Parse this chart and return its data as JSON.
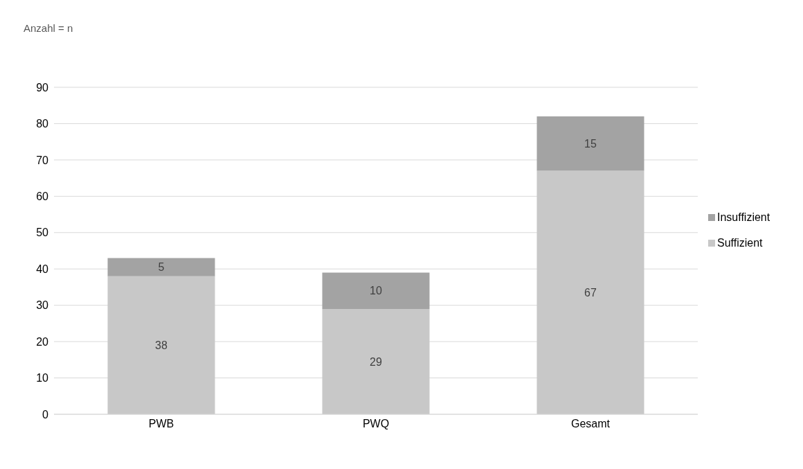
{
  "chart_data": {
    "type": "bar",
    "ylabel": "Anzahl = n",
    "categories": [
      "PWB",
      "PWQ",
      "Gesamt"
    ],
    "series": [
      {
        "name": "Suffizient",
        "color": "#c8c8c8",
        "values": [
          38,
          29,
          67
        ]
      },
      {
        "name": "Insuffizient",
        "color": "#a3a3a3",
        "values": [
          5,
          10,
          15
        ]
      }
    ],
    "stacked": true,
    "ylim": [
      0,
      90
    ],
    "yticks": [
      0,
      10,
      20,
      30,
      40,
      50,
      60,
      70,
      80,
      90
    ],
    "grid": "y",
    "legend": "right",
    "data_labels": true
  }
}
